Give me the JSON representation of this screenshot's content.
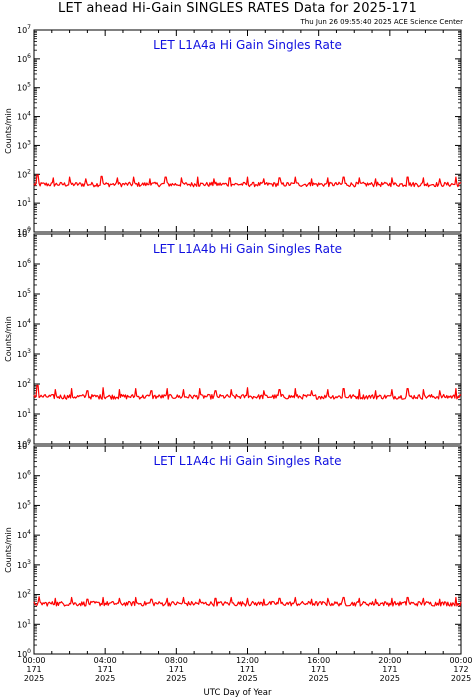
{
  "header": {
    "title": "LET ahead Hi-Gain SINGLES RATES Data for 2025-171",
    "timestamp": "Thu Jun 26 09:55:40 2025 ACE Science Center"
  },
  "colors": {
    "trace": "#ff0000",
    "panel_title": "#1010e0",
    "axis": "#000000"
  },
  "chart_data": [
    {
      "type": "line",
      "title": "LET L1A4a Hi Gain Singles Rate",
      "ylabel": "Counts/min",
      "yscale": "log",
      "ylim": [
        1,
        10000000
      ],
      "xlim": [
        0,
        24
      ],
      "baseline": 45,
      "spikes": [
        [
          0.2,
          95
        ],
        [
          1.1,
          75
        ],
        [
          2.0,
          80
        ],
        [
          2.9,
          70
        ],
        [
          3.8,
          85
        ],
        [
          4.7,
          75
        ],
        [
          5.6,
          80
        ],
        [
          6.5,
          70
        ],
        [
          7.4,
          80
        ],
        [
          8.3,
          75
        ],
        [
          9.2,
          80
        ],
        [
          10.1,
          70
        ],
        [
          11.0,
          75
        ],
        [
          12.0,
          80
        ],
        [
          12.9,
          70
        ],
        [
          13.8,
          75
        ],
        [
          14.7,
          80
        ],
        [
          15.6,
          70
        ],
        [
          16.5,
          75
        ],
        [
          17.4,
          80
        ],
        [
          18.3,
          75
        ],
        [
          19.2,
          70
        ],
        [
          20.1,
          75
        ],
        [
          21.0,
          80
        ],
        [
          21.9,
          75
        ],
        [
          22.8,
          70
        ],
        [
          23.7,
          80
        ]
      ]
    },
    {
      "type": "line",
      "title": "LET L1A4b Hi Gain Singles Rate",
      "ylabel": "Counts/min",
      "yscale": "log",
      "ylim": [
        1,
        10000000
      ],
      "xlim": [
        0,
        24
      ],
      "baseline": 38,
      "spikes": [
        [
          0.2,
          90
        ],
        [
          1.2,
          65
        ],
        [
          2.1,
          70
        ],
        [
          3.0,
          60
        ],
        [
          3.9,
          75
        ],
        [
          4.8,
          65
        ],
        [
          5.7,
          70
        ],
        [
          6.6,
          60
        ],
        [
          7.5,
          70
        ],
        [
          8.4,
          65
        ],
        [
          9.3,
          70
        ],
        [
          10.2,
          60
        ],
        [
          11.1,
          65
        ],
        [
          12.0,
          75
        ],
        [
          12.9,
          60
        ],
        [
          13.8,
          65
        ],
        [
          14.7,
          70
        ],
        [
          15.6,
          60
        ],
        [
          16.5,
          65
        ],
        [
          17.4,
          70
        ],
        [
          18.3,
          65
        ],
        [
          19.2,
          60
        ],
        [
          20.1,
          65
        ],
        [
          21.0,
          70
        ],
        [
          21.9,
          65
        ],
        [
          22.8,
          60
        ],
        [
          23.7,
          70
        ]
      ]
    },
    {
      "type": "line",
      "title": "LET L1A4c Hi Gain Singles Rate",
      "ylabel": "Counts/min",
      "yscale": "log",
      "ylim": [
        1,
        10000000
      ],
      "xlim": [
        0,
        24
      ],
      "baseline": 50,
      "spikes": [
        [
          0.3,
          85
        ],
        [
          1.2,
          75
        ],
        [
          2.1,
          80
        ],
        [
          3.0,
          70
        ],
        [
          3.9,
          80
        ],
        [
          4.8,
          75
        ],
        [
          5.7,
          80
        ],
        [
          6.6,
          70
        ],
        [
          7.5,
          75
        ],
        [
          8.4,
          80
        ],
        [
          9.3,
          70
        ],
        [
          10.2,
          75
        ],
        [
          11.1,
          80
        ],
        [
          12.0,
          75
        ],
        [
          12.9,
          70
        ],
        [
          13.8,
          75
        ],
        [
          14.7,
          80
        ],
        [
          15.6,
          70
        ],
        [
          16.5,
          75
        ],
        [
          17.4,
          80
        ],
        [
          18.3,
          75
        ],
        [
          19.2,
          70
        ],
        [
          20.1,
          75
        ],
        [
          21.0,
          80
        ],
        [
          21.9,
          75
        ],
        [
          22.8,
          70
        ],
        [
          23.7,
          80
        ]
      ]
    }
  ],
  "x_axis": {
    "title": "UTC Day of Year",
    "ticks": [
      {
        "value": 0,
        "time": "00:00",
        "doy": "171",
        "year": "2025"
      },
      {
        "value": 4,
        "time": "04:00",
        "doy": "171",
        "year": "2025"
      },
      {
        "value": 8,
        "time": "08:00",
        "doy": "171",
        "year": "2025"
      },
      {
        "value": 12,
        "time": "12:00",
        "doy": "171",
        "year": "2025"
      },
      {
        "value": 16,
        "time": "16:00",
        "doy": "171",
        "year": "2025"
      },
      {
        "value": 20,
        "time": "20:00",
        "doy": "171",
        "year": "2025"
      },
      {
        "value": 24,
        "time": "00:00",
        "doy": "172",
        "year": "2025"
      }
    ]
  }
}
